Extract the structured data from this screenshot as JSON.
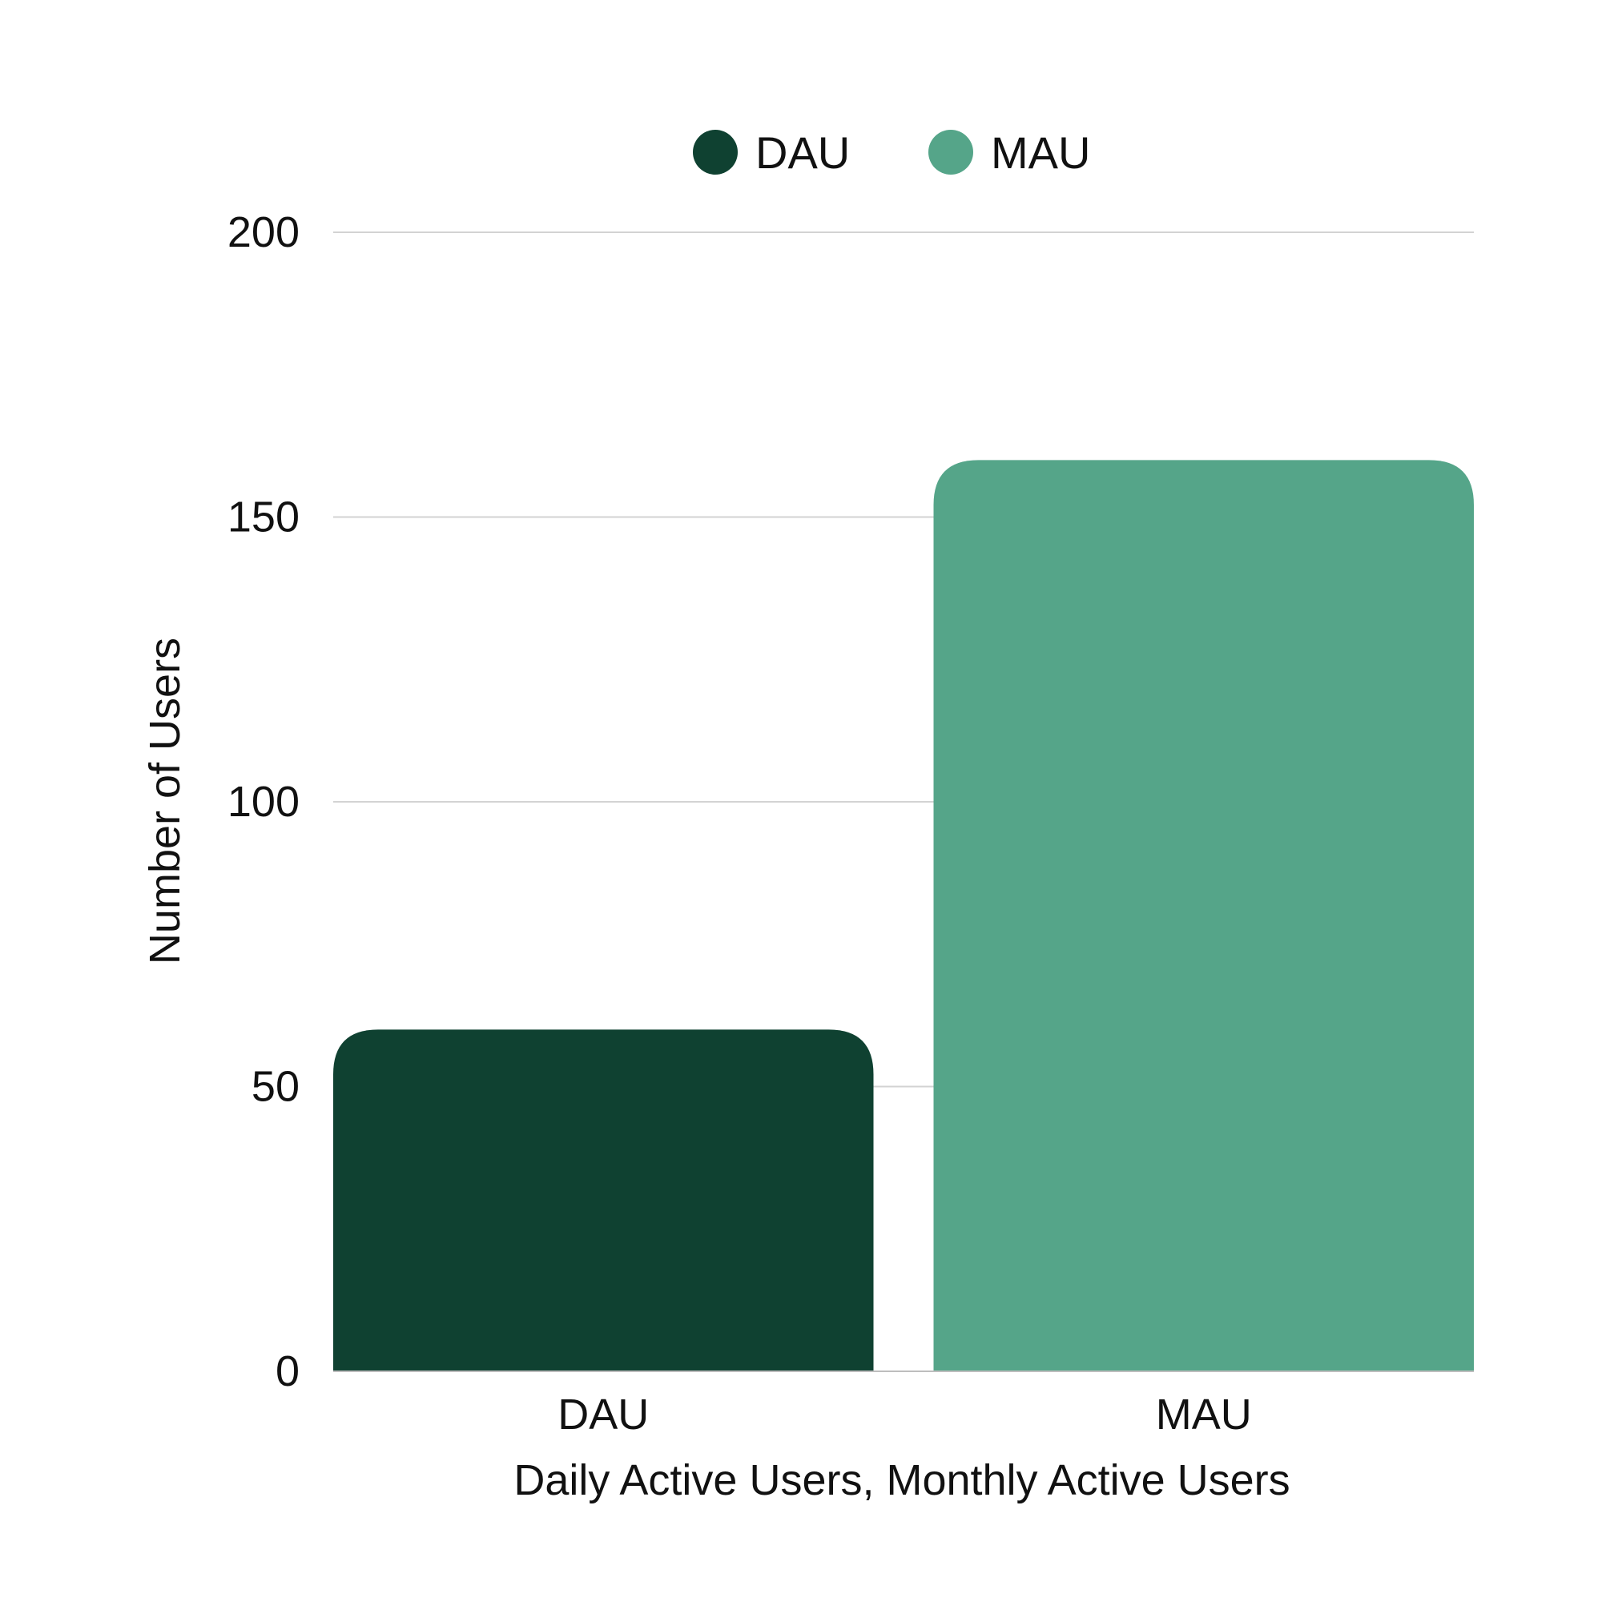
{
  "chart_data": {
    "type": "bar",
    "categories": [
      "DAU",
      "MAU"
    ],
    "series": [
      {
        "name": "DAU",
        "category": "DAU",
        "value": 60,
        "color": "#0f4131"
      },
      {
        "name": "MAU",
        "category": "MAU",
        "value": 160,
        "color": "#55a589"
      }
    ],
    "values": [
      60,
      160
    ],
    "xlabel": "Daily Active Users, Monthly Active Users",
    "ylabel": "Number of Users",
    "ylim": [
      0,
      200
    ],
    "yticks": [
      0,
      50,
      100,
      150,
      200
    ],
    "ytick_labels": [
      "0",
      "50",
      "100",
      "150",
      "200"
    ],
    "grid": true,
    "legend": {
      "placement": "top-center",
      "entries": [
        {
          "label": "DAU",
          "color": "#0f4131"
        },
        {
          "label": "MAU",
          "color": "#55a589"
        }
      ]
    },
    "colors": {
      "grid": "#d3d3d3",
      "axis": "#bdbdbd",
      "text": "#111111",
      "background": "#ffffff"
    }
  }
}
